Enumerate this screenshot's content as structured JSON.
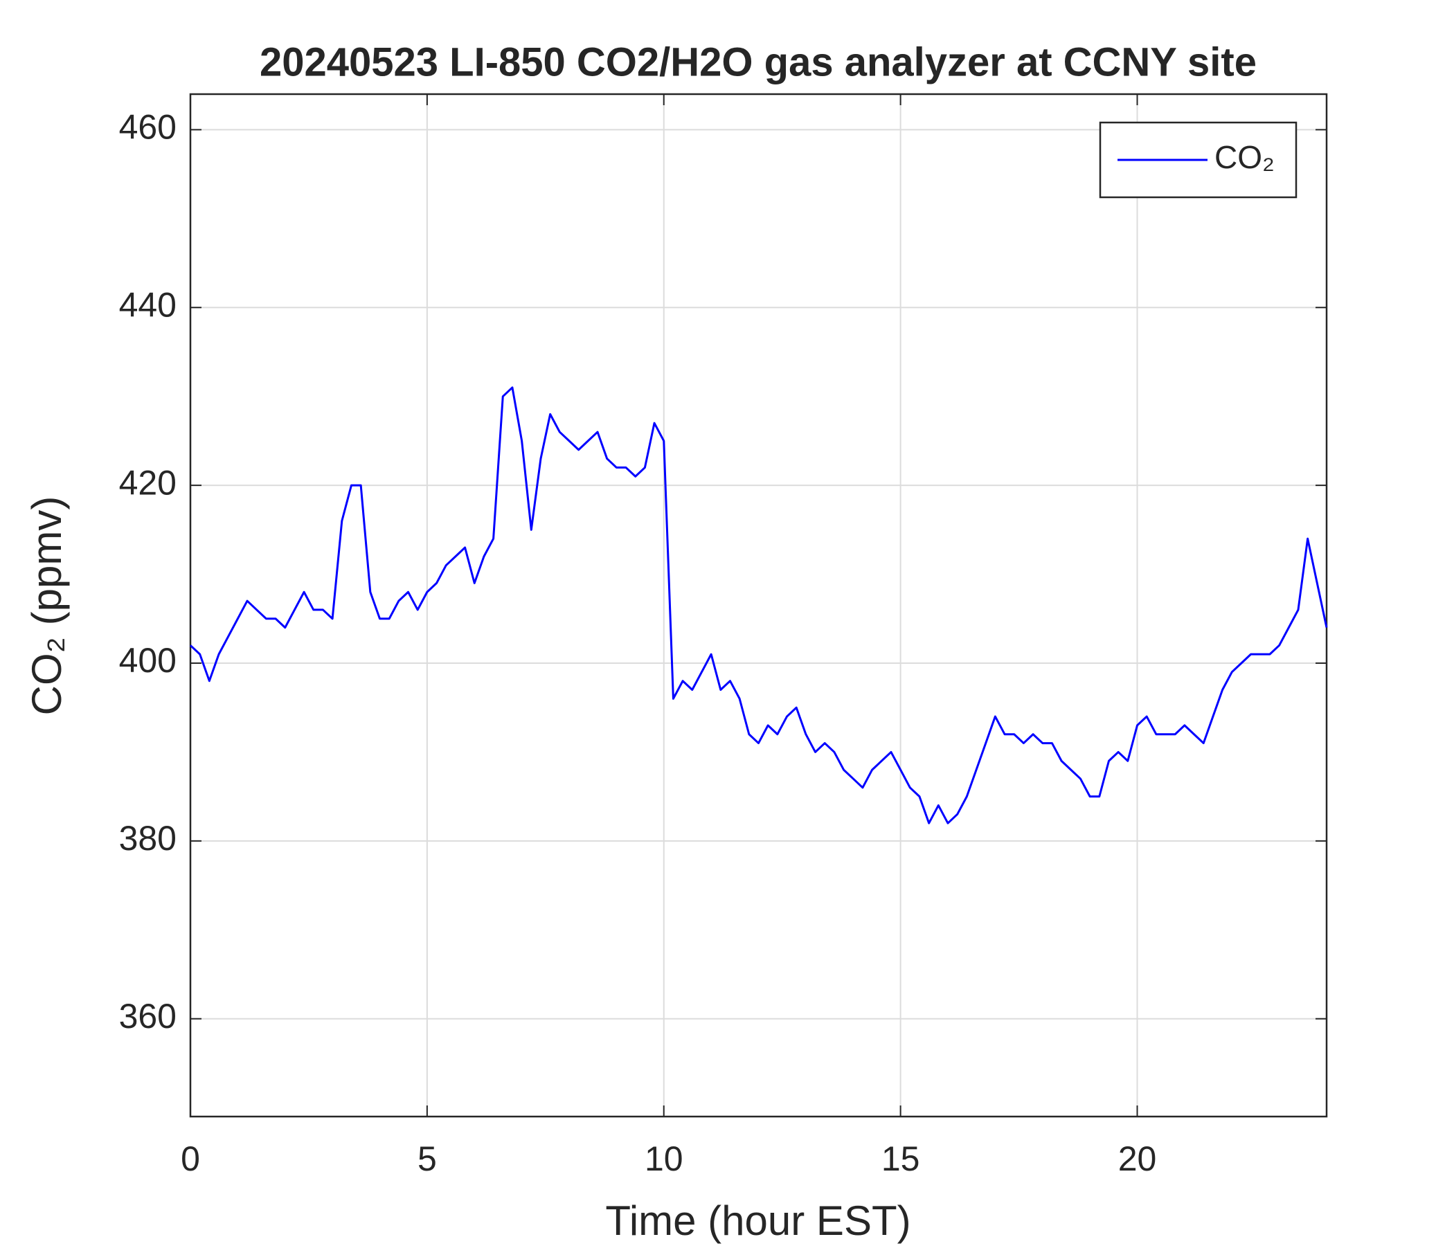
{
  "chart_data": {
    "type": "line",
    "title": "20240523 LI-850 CO2/H2O gas analyzer at CCNY site",
    "x_label": "Time (hour EST)",
    "y_label": "CO₂ (ppmv)",
    "xlim": [
      0,
      24
    ],
    "xticks": [
      0,
      5,
      10,
      15,
      20
    ],
    "ylim": [
      349,
      464
    ],
    "yticks": [
      360,
      380,
      400,
      420,
      440,
      460
    ],
    "grid": true,
    "legend": "northeast",
    "x": [
      0,
      0.2,
      0.4,
      0.6,
      0.8,
      1,
      1.2,
      1.4,
      1.6,
      1.8,
      2,
      2.2,
      2.4,
      2.6,
      2.8,
      3,
      3.2,
      3.4,
      3.6,
      3.8,
      4,
      4.2,
      4.4,
      4.6,
      4.8,
      5,
      5.2,
      5.4,
      5.6,
      5.8,
      6,
      6.2,
      6.4,
      6.6,
      6.8,
      7,
      7.2,
      7.4,
      7.6,
      7.8,
      8,
      8.2,
      8.4,
      8.6,
      8.8,
      9,
      9.2,
      9.4,
      9.6,
      9.8,
      10,
      10.2,
      10.4,
      10.6,
      10.8,
      11,
      11.2,
      11.4,
      11.6,
      11.8,
      12,
      12.2,
      12.4,
      12.6,
      12.8,
      13,
      13.2,
      13.4,
      13.6,
      13.8,
      14,
      14.2,
      14.4,
      14.6,
      14.8,
      15,
      15.2,
      15.4,
      15.6,
      15.8,
      16,
      16.2,
      16.4,
      16.6,
      16.8,
      17,
      17.2,
      17.4,
      17.6,
      17.8,
      18,
      18.2,
      18.4,
      18.6,
      18.8,
      19,
      19.2,
      19.4,
      19.6,
      19.8,
      20,
      20.2,
      20.4,
      20.6,
      20.8,
      21,
      21.2,
      21.4,
      21.6,
      21.8,
      22,
      22.2,
      22.4,
      22.6,
      22.8,
      23,
      23.2,
      23.4,
      23.6,
      23.8,
      24
    ],
    "series": [
      {
        "name": "CO₂",
        "color": "#0000ff",
        "values": [
          402,
          401,
          398,
          401,
          403,
          405,
          407,
          406,
          405,
          405,
          404,
          406,
          408,
          406,
          406,
          405,
          416,
          420,
          420,
          408,
          405,
          405,
          407,
          408,
          406,
          408,
          409,
          411,
          412,
          413,
          409,
          412,
          414,
          430,
          431,
          425,
          415,
          423,
          428,
          426,
          425,
          424,
          425,
          426,
          423,
          422,
          422,
          421,
          422,
          427,
          425,
          396,
          398,
          397,
          399,
          401,
          397,
          398,
          396,
          392,
          391,
          393,
          392,
          394,
          395,
          392,
          390,
          391,
          390,
          388,
          387,
          386,
          388,
          389,
          390,
          388,
          386,
          385,
          382,
          384,
          382,
          383,
          385,
          388,
          391,
          394,
          392,
          392,
          391,
          392,
          391,
          391,
          389,
          388,
          387,
          385,
          385,
          389,
          390,
          389,
          393,
          394,
          392,
          392,
          392,
          393,
          392,
          391,
          394,
          397,
          399,
          400,
          401,
          401,
          401,
          402,
          404,
          406,
          414,
          409,
          404
        ]
      }
    ]
  }
}
